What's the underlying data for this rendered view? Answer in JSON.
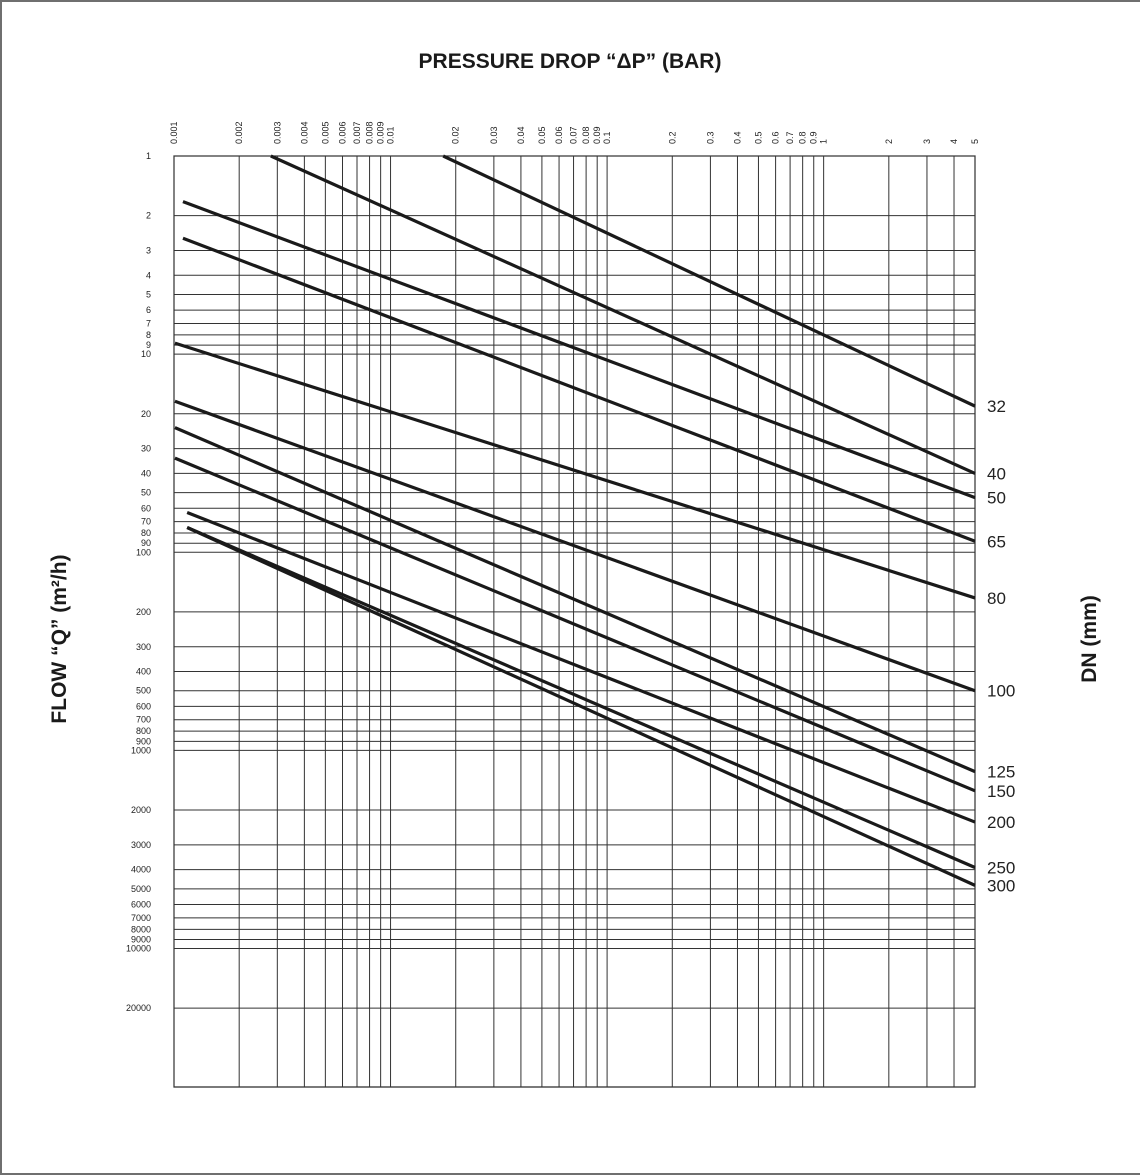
{
  "chart_data": {
    "type": "line",
    "title": "PRESSURE DROP “ΔP” (BAR)",
    "xlabel": "PRESSURE DROP “ΔP” (BAR)",
    "ylabel": "FLOW “Q” (m²/h)",
    "y2label": "DN (mm)",
    "xscale": "log",
    "yscale": "log-inverted",
    "xlim": [
      0.001,
      5
    ],
    "ylim": [
      1,
      50000
    ],
    "grid": true,
    "x_ticks": [
      {
        "v": 0.001,
        "label": "0.001"
      },
      {
        "v": 0.002,
        "label": "0.002"
      },
      {
        "v": 0.003,
        "label": "0.003"
      },
      {
        "v": 0.004,
        "label": "0.004"
      },
      {
        "v": 0.005,
        "label": "0.005"
      },
      {
        "v": 0.006,
        "label": "0.006"
      },
      {
        "v": 0.007,
        "label": "0.007"
      },
      {
        "v": 0.008,
        "label": "0.008"
      },
      {
        "v": 0.009,
        "label": "0.009"
      },
      {
        "v": 0.01,
        "label": "0.01"
      },
      {
        "v": 0.02,
        "label": "0.02"
      },
      {
        "v": 0.03,
        "label": "0.03"
      },
      {
        "v": 0.04,
        "label": "0.04"
      },
      {
        "v": 0.05,
        "label": "0.05"
      },
      {
        "v": 0.06,
        "label": "0.06"
      },
      {
        "v": 0.07,
        "label": "0.07"
      },
      {
        "v": 0.08,
        "label": "0.08"
      },
      {
        "v": 0.09,
        "label": "0.09"
      },
      {
        "v": 0.1,
        "label": "0.1"
      },
      {
        "v": 0.2,
        "label": "0.2"
      },
      {
        "v": 0.3,
        "label": "0.3"
      },
      {
        "v": 0.4,
        "label": "0.4"
      },
      {
        "v": 0.5,
        "label": "0.5"
      },
      {
        "v": 0.6,
        "label": "0.6"
      },
      {
        "v": 0.7,
        "label": "0.7"
      },
      {
        "v": 0.8,
        "label": "0.8"
      },
      {
        "v": 0.9,
        "label": "0.9"
      },
      {
        "v": 1,
        "label": "1"
      },
      {
        "v": 2,
        "label": "2"
      },
      {
        "v": 3,
        "label": "3"
      },
      {
        "v": 4,
        "label": "4"
      },
      {
        "v": 5,
        "label": "5"
      }
    ],
    "y_ticks": [
      {
        "v": 1,
        "label": "1"
      },
      {
        "v": 2,
        "label": "2"
      },
      {
        "v": 3,
        "label": "3"
      },
      {
        "v": 4,
        "label": "4"
      },
      {
        "v": 5,
        "label": "5"
      },
      {
        "v": 6,
        "label": "6"
      },
      {
        "v": 7,
        "label": "7"
      },
      {
        "v": 8,
        "label": "8"
      },
      {
        "v": 9,
        "label": "9"
      },
      {
        "v": 10,
        "label": "10"
      },
      {
        "v": 20,
        "label": "20"
      },
      {
        "v": 30,
        "label": "30"
      },
      {
        "v": 40,
        "label": "40"
      },
      {
        "v": 50,
        "label": "50"
      },
      {
        "v": 60,
        "label": "60"
      },
      {
        "v": 70,
        "label": "70"
      },
      {
        "v": 80,
        "label": "80"
      },
      {
        "v": 90,
        "label": "90"
      },
      {
        "v": 100,
        "label": "100"
      },
      {
        "v": 200,
        "label": "200"
      },
      {
        "v": 300,
        "label": "300"
      },
      {
        "v": 400,
        "label": "400"
      },
      {
        "v": 500,
        "label": "500"
      },
      {
        "v": 600,
        "label": "600"
      },
      {
        "v": 700,
        "label": "700"
      },
      {
        "v": 800,
        "label": "800"
      },
      {
        "v": 900,
        "label": "900"
      },
      {
        "v": 1000,
        "label": "1000"
      },
      {
        "v": 2000,
        "label": "2000"
      },
      {
        "v": 3000,
        "label": "3000"
      },
      {
        "v": 4000,
        "label": "4000"
      },
      {
        "v": 5000,
        "label": "5000"
      },
      {
        "v": 6000,
        "label": "6000"
      },
      {
        "v": 7000,
        "label": "7000"
      },
      {
        "v": 8000,
        "label": "8000"
      },
      {
        "v": 9000,
        "label": "9000"
      },
      {
        "v": 10000,
        "label": "10000"
      },
      {
        "v": 20000,
        "label": "20000"
      }
    ],
    "series": [
      {
        "name": "32",
        "x": [
          0.0175,
          5
        ],
        "y": [
          1,
          18.3
        ]
      },
      {
        "name": "40",
        "x": [
          0.0028,
          5
        ],
        "y": [
          1,
          40
        ]
      },
      {
        "name": "50",
        "x": [
          0.0011,
          5
        ],
        "y": [
          1.7,
          53
        ]
      },
      {
        "name": "65",
        "x": [
          0.0011,
          5
        ],
        "y": [
          2.6,
          88
        ]
      },
      {
        "name": "80",
        "x": [
          0.00101,
          5
        ],
        "y": [
          8.8,
          170
        ]
      },
      {
        "name": "100",
        "x": [
          0.00101,
          5
        ],
        "y": [
          17.3,
          500
        ]
      },
      {
        "name": "125",
        "x": [
          0.00101,
          5
        ],
        "y": [
          23.5,
          1280
        ]
      },
      {
        "name": "150",
        "x": [
          0.00101,
          5
        ],
        "y": [
          33.5,
          1600
        ]
      },
      {
        "name": "200",
        "x": [
          0.00115,
          5
        ],
        "y": [
          63,
          2300
        ]
      },
      {
        "name": "250",
        "x": [
          0.00115,
          5
        ],
        "y": [
          75,
          3900
        ]
      },
      {
        "name": "300",
        "x": [
          0.00115,
          5
        ],
        "y": [
          75,
          4800
        ]
      }
    ]
  }
}
